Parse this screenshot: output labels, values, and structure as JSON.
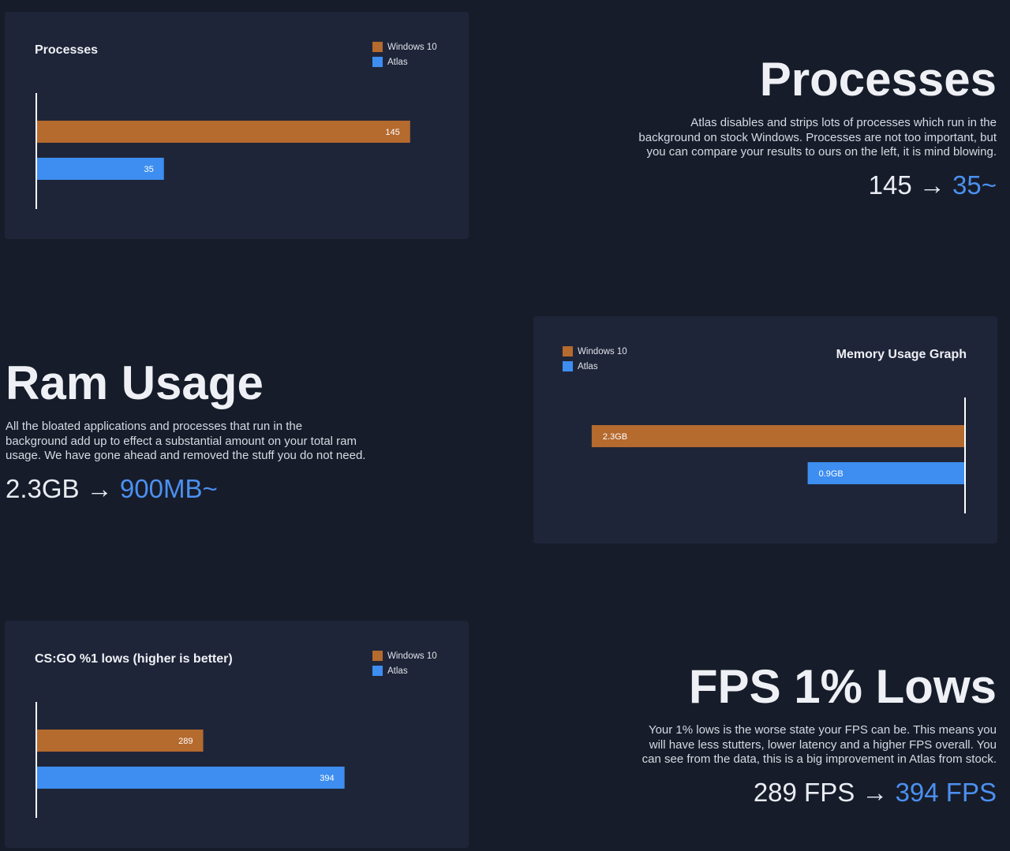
{
  "chart_data": [
    {
      "type": "bar",
      "orientation": "horizontal",
      "title": "Processes",
      "legend": "top-right",
      "reverse": false,
      "categories": [
        null
      ],
      "xlim": [
        -22,
        162
      ],
      "series": [
        {
          "name": "Windows 10",
          "color": "#b56a2e",
          "values": [
            145
          ]
        },
        {
          "name": "Atlas",
          "color": "#3d8ef0",
          "values": [
            35
          ]
        }
      ]
    },
    {
      "type": "bar",
      "orientation": "horizontal",
      "title": "Memory Usage Graph",
      "legend": "top-left",
      "reverse": true,
      "categories": [
        null
      ],
      "xlim": [
        -0.12,
        2.55
      ],
      "series": [
        {
          "name": "Windows 10",
          "color": "#b56a2e",
          "values": [
            2.3
          ],
          "value_labels": [
            "2.3GB"
          ]
        },
        {
          "name": "Atlas",
          "color": "#3d8ef0",
          "values": [
            0.9
          ],
          "value_labels": [
            "0.9GB"
          ]
        }
      ]
    },
    {
      "type": "bar",
      "orientation": "horizontal",
      "title": "CS:GO %1 lows (higher is better)",
      "legend": "top-right",
      "reverse": false,
      "categories": [
        null
      ],
      "xlim": [
        165,
        471
      ],
      "series": [
        {
          "name": "Windows 10",
          "color": "#b56a2e",
          "values": [
            289
          ]
        },
        {
          "name": "Atlas",
          "color": "#3d8ef0",
          "values": [
            394
          ]
        }
      ]
    }
  ],
  "sections": [
    {
      "heading": "Processes",
      "body": [
        "Atlas disables and strips lots of processes which run in the",
        "background on stock Windows. Processes are not too important, but",
        "you can compare your results to ours on the left, it is mind blowing."
      ],
      "before": "145",
      "arrow": "→",
      "after": "35~"
    },
    {
      "heading": "Ram Usage",
      "body": [
        "All the bloated applications and processes that run in the",
        "background add up to effect a substantial amount on your total ram",
        "usage. We have gone ahead and removed the stuff you do not need."
      ],
      "before": "2.3GB",
      "arrow": "→",
      "after": "900MB~"
    },
    {
      "heading": "FPS 1% Lows",
      "body": [
        "Your 1% lows is the worse state your FPS can be. This means you",
        "will have less stutters, lower latency and a higher FPS overall. You",
        "can see from the data, this is a big improvement in Atlas from stock."
      ],
      "before": "289 FPS",
      "arrow": "→",
      "after": "394 FPS"
    }
  ]
}
